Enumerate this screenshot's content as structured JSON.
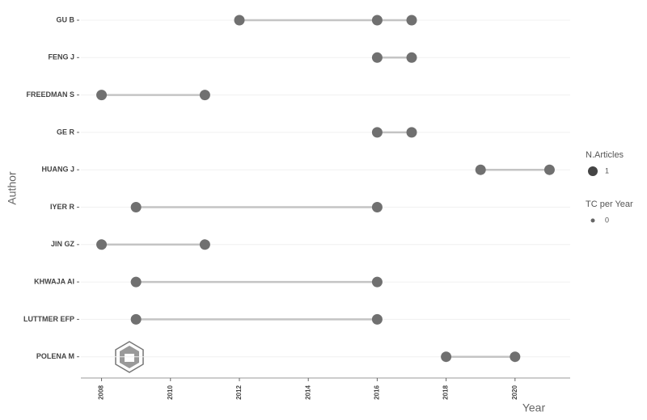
{
  "chart_data": {
    "type": "scatter",
    "xlabel": "Year",
    "ylabel": "Author",
    "categories": [
      "GU B",
      "FENG J",
      "FREEDMAN S",
      "GE R",
      "HUANG J",
      "IYER R",
      "JIN GZ",
      "KHWAJA AI",
      "LUTTMER EFP",
      "POLENA M"
    ],
    "years": [
      [
        2012,
        2016,
        2017
      ],
      [
        2016,
        2017
      ],
      [
        2008,
        2011
      ],
      [
        2016,
        2017
      ],
      [
        2019,
        2021
      ],
      [
        2009,
        2016
      ],
      [
        2008,
        2011
      ],
      [
        2009,
        2016
      ],
      [
        2009,
        2016
      ],
      [
        2018,
        2020
      ]
    ],
    "color": "#707070",
    "line_color": "#c4c4c4",
    "xlim": [
      2007.4,
      2021.6
    ],
    "xticks": [
      2008,
      2010,
      2012,
      2014,
      2016,
      2018,
      2020
    ],
    "grid": true,
    "legend": {
      "size_title": "N.Articles",
      "size_values": [
        1
      ],
      "color_title": "TC per Year",
      "color_values": [
        0
      ]
    }
  }
}
